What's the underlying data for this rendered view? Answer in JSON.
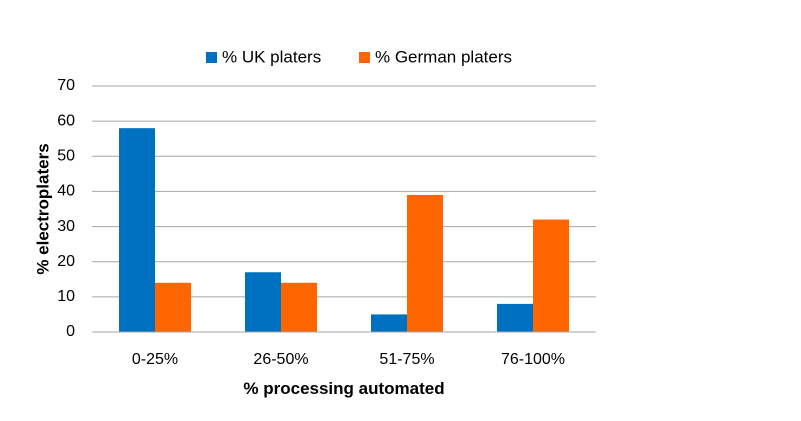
{
  "chart_data": {
    "type": "bar",
    "categories": [
      "0-25%",
      "26-50%",
      "51-75%",
      "76-100%"
    ],
    "series": [
      {
        "name": "% UK platers",
        "values": [
          58,
          17,
          5,
          8
        ],
        "color": "#0070c0"
      },
      {
        "name": "% German platers",
        "values": [
          14,
          14,
          39,
          32
        ],
        "color": "#ff6600"
      }
    ],
    "title": "",
    "xlabel": "% processing automated",
    "ylabel": "% electroplaters",
    "ylim": [
      0,
      70
    ],
    "yticks": [
      0,
      10,
      20,
      30,
      40,
      50,
      60,
      70
    ],
    "grid": true,
    "legend_position": "top"
  }
}
